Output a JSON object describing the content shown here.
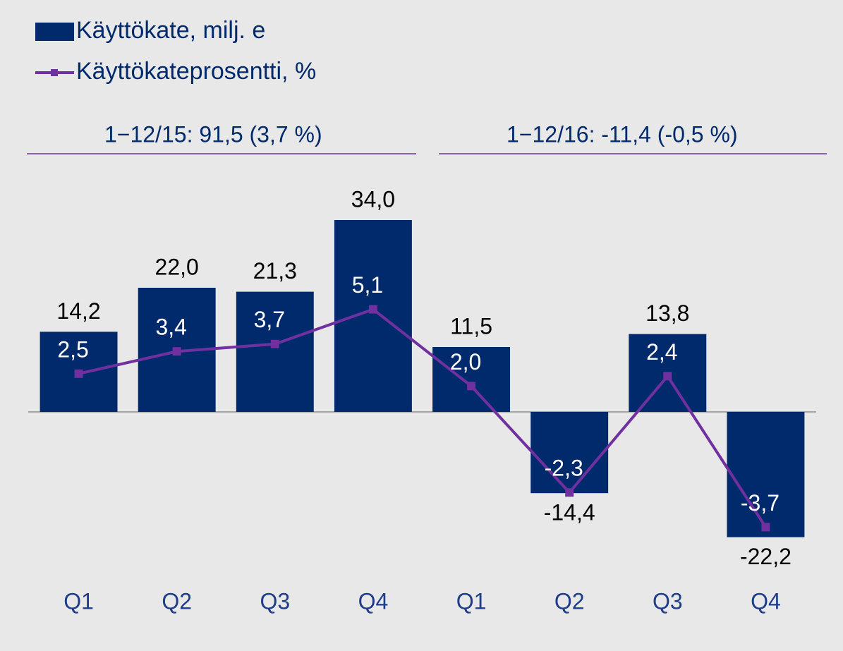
{
  "chart_data": {
    "type": "bar_line",
    "categories": [
      "Q1",
      "Q2",
      "Q3",
      "Q4",
      "Q1",
      "Q2",
      "Q3",
      "Q4"
    ],
    "series": [
      {
        "name": "Käyttökate, milj. e",
        "type": "bar",
        "color": "#002a6c",
        "values": [
          14.2,
          22.0,
          21.3,
          34.0,
          11.5,
          -14.4,
          13.8,
          -22.2
        ],
        "value_labels": [
          "14,2",
          "22,0",
          "21,3",
          "34,0",
          "11,5",
          "-14,4",
          "13,8",
          "-22,2"
        ]
      },
      {
        "name": "Käyttökateprosentti, %",
        "type": "line",
        "axis": "y2",
        "color": "#7030a0",
        "values": [
          2.5,
          3.4,
          3.7,
          5.1,
          2.0,
          -2.3,
          2.4,
          -3.7
        ],
        "value_labels": [
          "2,5",
          "3,4",
          "3,7",
          "5,1",
          "2,0",
          "-2,3",
          "2,4",
          "-3,7"
        ]
      }
    ],
    "annotations": [
      "1−12/15: 91,5 (3,7 %)",
      "1−12/16: -11,4 (-0,5 %)"
    ],
    "ylim": [
      -27,
      48
    ],
    "y2lim": [
      -5.2,
      11.9
    ],
    "legend": "top-left"
  }
}
